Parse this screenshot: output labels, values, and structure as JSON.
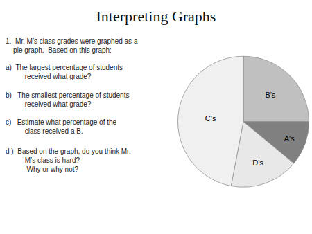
{
  "chart_data": {
    "type": "pie",
    "title": "Interpreting Graphs",
    "categories": [
      "B's",
      "A's",
      "D's",
      "C's"
    ],
    "values": [
      25,
      11,
      17,
      47
    ],
    "colors": [
      "#C0C0C0",
      "#808080",
      "#E8E8E8",
      "#F0F0F0"
    ],
    "data_labels": false,
    "annotations": [
      "1.  Mr. M’s class grades were graphed as a\n    pie graph.  Based on this graph:",
      "a)  The largest percentage of students\n          received what grade?",
      "b)   The smallest percentage of students\n          received what grade?",
      "c)   Estimate what percentage of the\n          class received a B.",
      "d )  Based on the graph, do you think Mr.\n          M’s class is hard?\n           Why or why not?"
    ]
  }
}
